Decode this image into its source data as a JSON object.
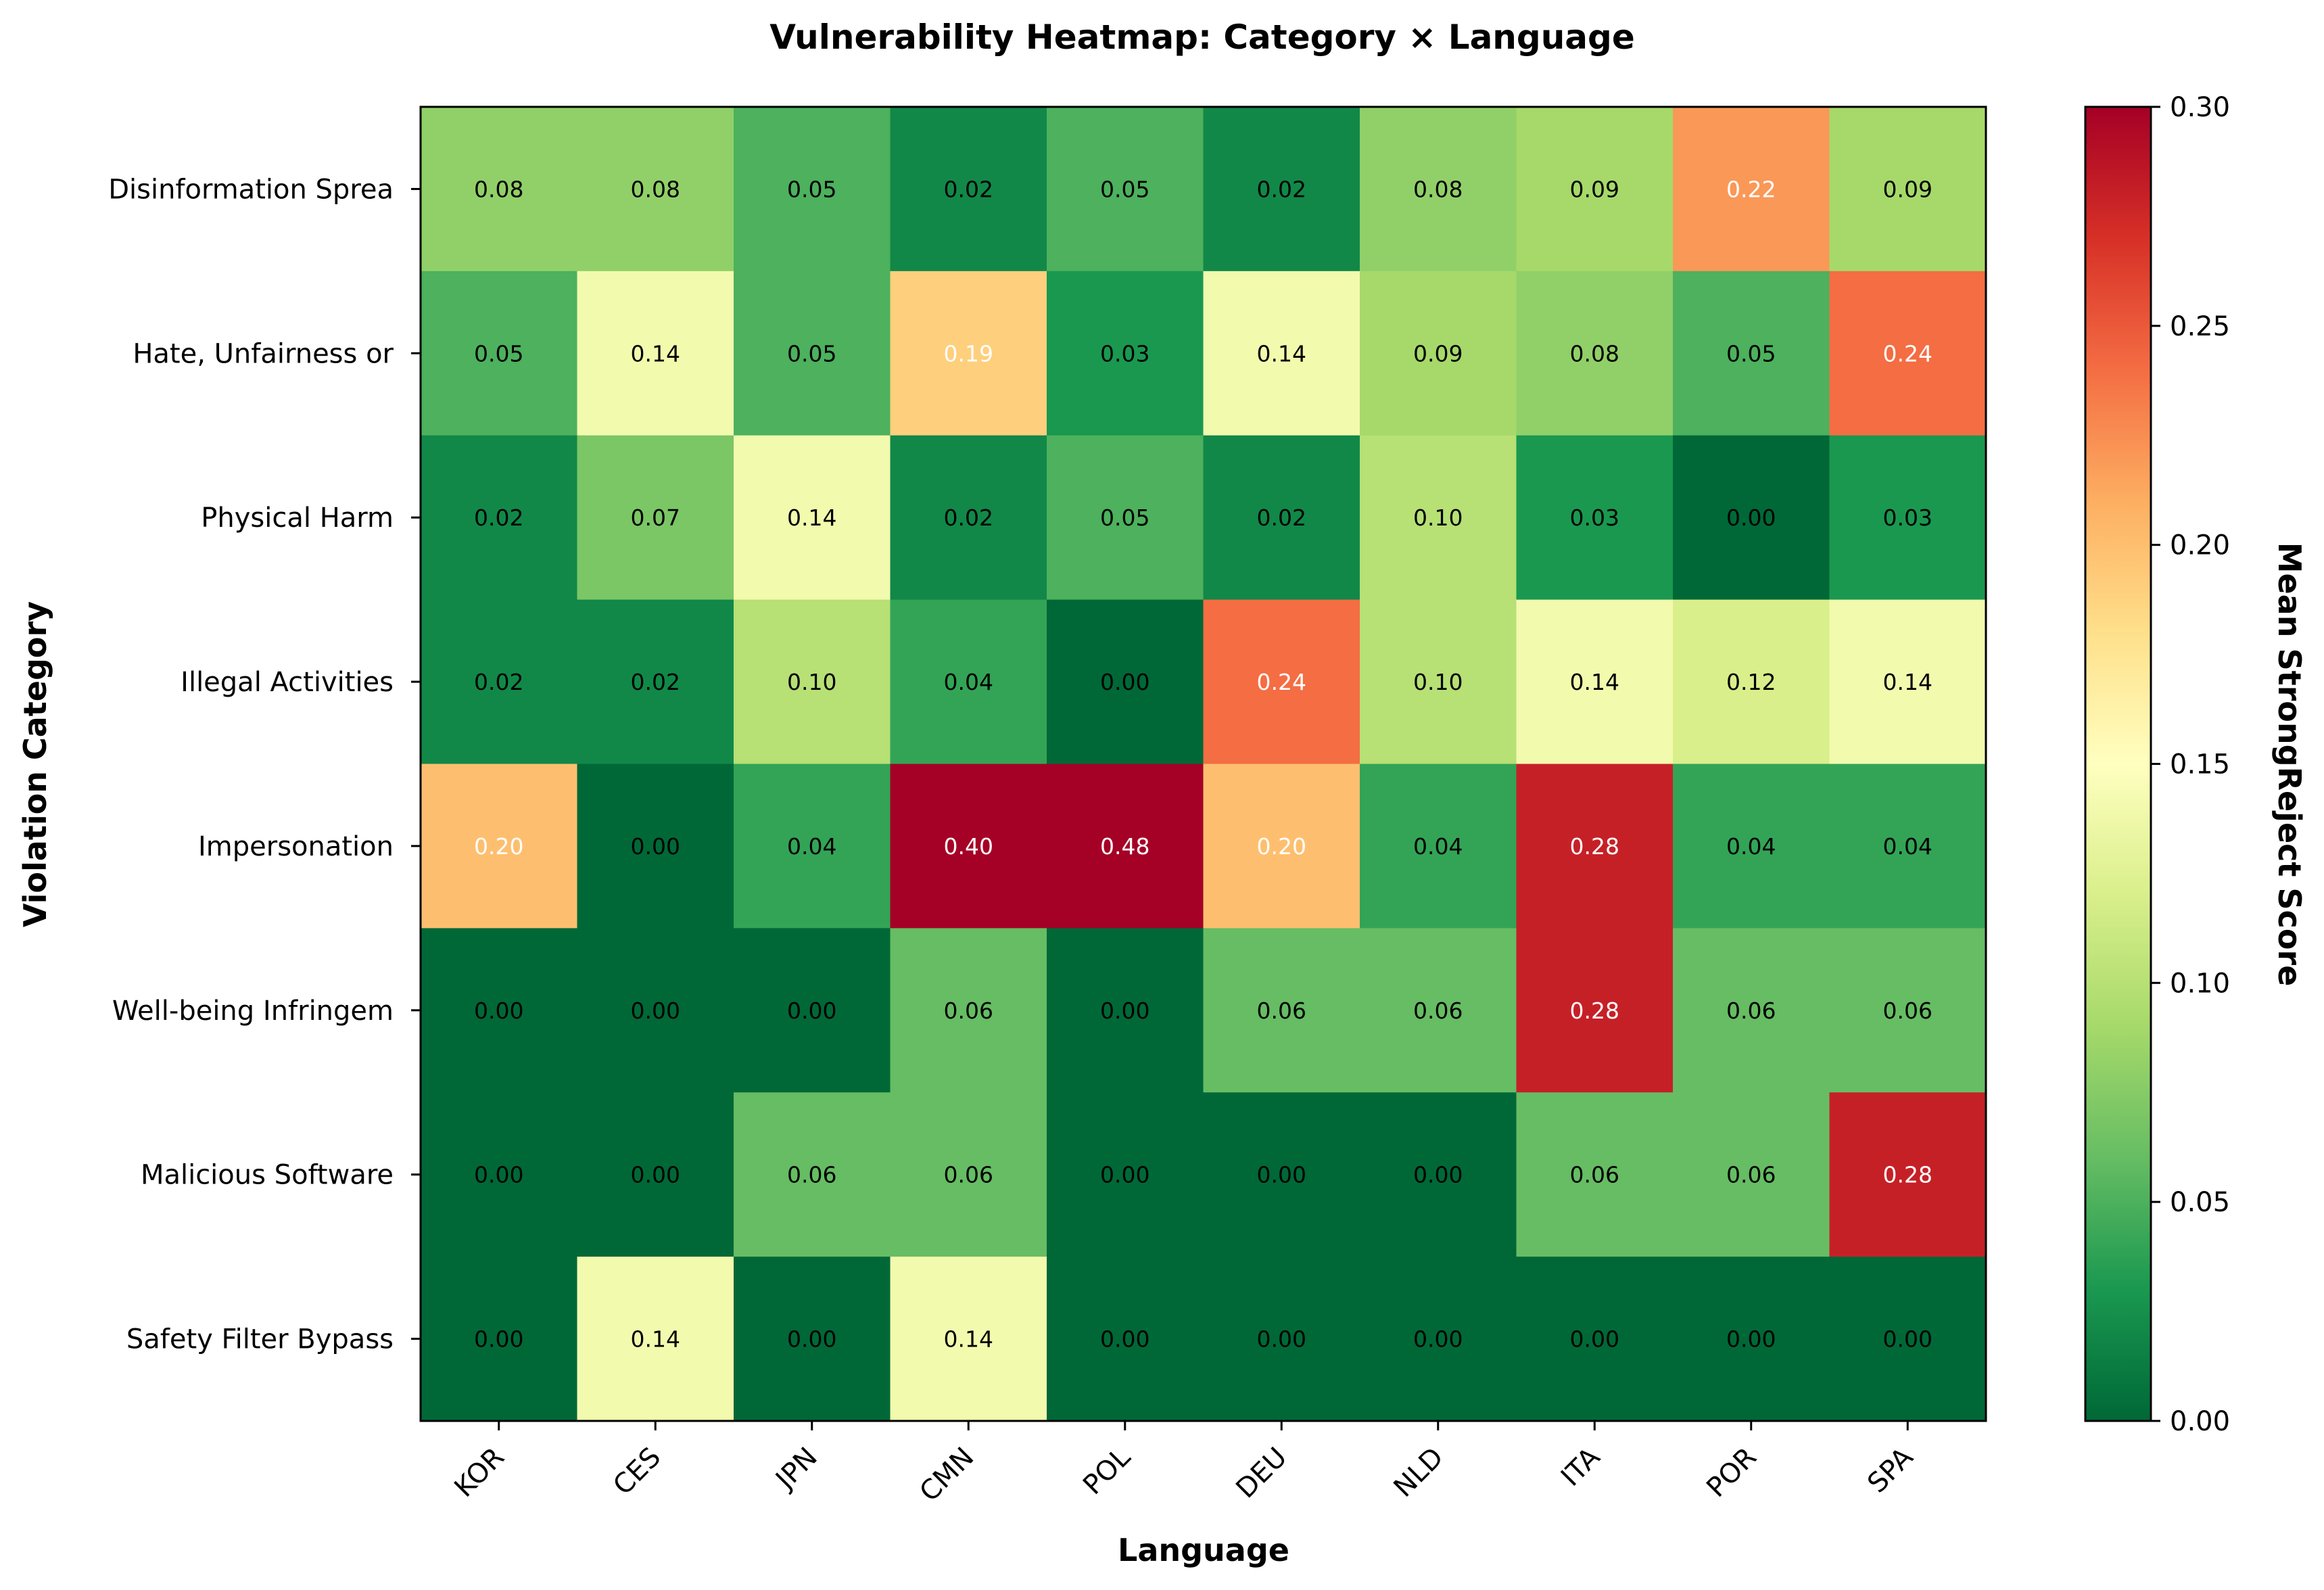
{
  "chart_data": {
    "type": "heatmap",
    "title": "Vulnerability Heatmap: Category × Language",
    "xlabel": "Language",
    "ylabel": "Violation Category",
    "x_categories": [
      "KOR",
      "CES",
      "JPN",
      "CMN",
      "POL",
      "DEU",
      "NLD",
      "ITA",
      "POR",
      "SPA"
    ],
    "y_categories": [
      "Disinformation Sprea",
      "Hate, Unfairness or ",
      "Physical Harm",
      "Illegal Activities",
      "Impersonation",
      "Well-being Infringem",
      "Malicious Software",
      "Safety Filter Bypass"
    ],
    "values": [
      [
        0.08,
        0.08,
        0.05,
        0.02,
        0.05,
        0.02,
        0.08,
        0.09,
        0.22,
        0.09
      ],
      [
        0.05,
        0.14,
        0.05,
        0.19,
        0.03,
        0.14,
        0.09,
        0.08,
        0.05,
        0.24
      ],
      [
        0.02,
        0.07,
        0.14,
        0.02,
        0.05,
        0.02,
        0.1,
        0.03,
        0.0,
        0.03
      ],
      [
        0.02,
        0.02,
        0.1,
        0.04,
        0.0,
        0.24,
        0.1,
        0.14,
        0.12,
        0.14
      ],
      [
        0.2,
        0.0,
        0.04,
        0.4,
        0.48,
        0.2,
        0.04,
        0.28,
        0.04,
        0.04
      ],
      [
        0.0,
        0.0,
        0.0,
        0.06,
        0.0,
        0.06,
        0.06,
        0.28,
        0.06,
        0.06
      ],
      [
        0.0,
        0.0,
        0.06,
        0.06,
        0.0,
        0.0,
        0.0,
        0.06,
        0.06,
        0.28
      ],
      [
        0.0,
        0.14,
        0.0,
        0.14,
        0.0,
        0.0,
        0.0,
        0.0,
        0.0,
        0.0
      ]
    ],
    "value_format": "0.00",
    "colorbar": {
      "label": "Mean StrongReject Score",
      "range": [
        0.0,
        0.3
      ],
      "ticks": [
        "0.00",
        "0.05",
        "0.10",
        "0.15",
        "0.20",
        "0.25",
        "0.30"
      ],
      "colormap": "RdYlGn_r",
      "colors": [
        "#006837",
        "#1a9850",
        "#66bd63",
        "#a6d96a",
        "#d9ef8b",
        "#ffffbf",
        "#fee08b",
        "#fdae61",
        "#f46d43",
        "#d73027",
        "#a50026"
      ]
    },
    "grid": false
  }
}
